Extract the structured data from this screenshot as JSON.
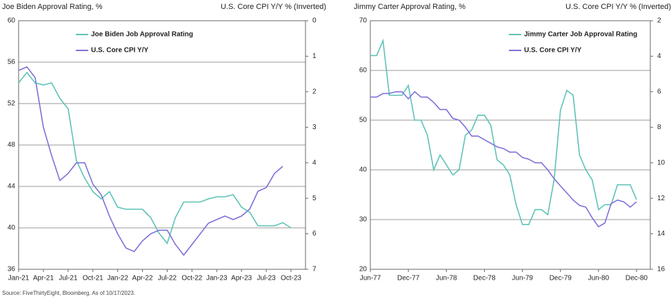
{
  "chart_data": [
    {
      "type": "line",
      "title": "Joe Biden Approval Rating, %",
      "y2_title": "U.S. Core CPI Y/Y % (Inverted)",
      "categories": [
        "Jan-21",
        null,
        null,
        "Apr-21",
        null,
        null,
        "Jul-21",
        null,
        null,
        "Oct-21",
        null,
        null,
        "Jan-22",
        null,
        null,
        "Apr-22",
        null,
        null,
        "Jul-22",
        null,
        null,
        "Oct-22",
        null,
        null,
        "Jan-23",
        null,
        null,
        "Apr-23",
        null,
        null,
        "Jul-23",
        null,
        null,
        "Oct-23"
      ],
      "series": [
        {
          "name": "Joe Biden Job Approval Rating",
          "color": "#5cc2b6",
          "values": [
            54,
            55,
            54,
            53.8,
            54,
            52.5,
            51.5,
            46.5,
            44.8,
            43.5,
            42.8,
            43.5,
            42,
            41.8,
            41.8,
            41.8,
            41,
            39.5,
            38.5,
            41,
            42.5,
            42.5,
            42.5,
            42.8,
            43,
            43,
            43.2,
            42,
            41.5,
            40.2,
            40.2,
            40.2,
            40.5,
            40
          ]
        },
        {
          "name": "U.S. Core CPI Y/Y",
          "color": "#7c70d8",
          "axis": "y2",
          "values": [
            1.4,
            1.3,
            1.6,
            3.0,
            3.8,
            4.5,
            4.3,
            4.0,
            4.0,
            4.6,
            4.9,
            5.5,
            6.0,
            6.4,
            6.5,
            6.2,
            6.0,
            5.9,
            5.9,
            6.3,
            6.6,
            6.3,
            6.0,
            5.7,
            5.6,
            5.5,
            5.6,
            5.5,
            5.3,
            4.8,
            4.7,
            4.3,
            4.1,
            null
          ]
        }
      ],
      "ylim": [
        36,
        60
      ],
      "yticks": [
        36,
        40,
        44,
        48,
        52,
        56,
        60
      ],
      "y2lim": [
        7,
        0
      ],
      "y2ticks": [
        0,
        1,
        2,
        3,
        4,
        5,
        6,
        7
      ],
      "grid": true,
      "legend": "upper center"
    },
    {
      "type": "line",
      "title": "Jimmy Carter Approval Rating, %",
      "y2_title": "U.S. Core CPI Y/Y % (Inverted)",
      "categories": [
        "Jun-77",
        null,
        null,
        null,
        null,
        null,
        "Dec-77",
        null,
        null,
        null,
        null,
        null,
        "Jun-78",
        null,
        null,
        null,
        null,
        null,
        "Dec-78",
        null,
        null,
        null,
        null,
        null,
        "Jun-79",
        null,
        null,
        null,
        null,
        null,
        "Dec-79",
        null,
        null,
        null,
        null,
        null,
        "Jun-80",
        null,
        null,
        null,
        null,
        null,
        "Dec-80"
      ],
      "series": [
        {
          "name": "Jimmy Carter Job Approval Rating",
          "color": "#5cc2b6",
          "values": [
            63,
            63,
            66,
            55,
            55,
            55,
            57,
            50,
            50,
            47,
            40,
            43,
            41,
            39,
            40,
            47,
            48,
            51,
            51,
            49,
            42,
            41,
            39,
            33,
            29,
            29,
            32,
            32,
            31,
            38,
            52,
            56,
            55,
            43,
            40,
            38,
            32,
            33,
            33,
            37,
            37,
            37,
            34
          ]
        },
        {
          "name": "U.S. Core CPI Y/Y",
          "color": "#7c70d8",
          "axis": "y2",
          "values": [
            6.3,
            6.3,
            6.1,
            6.1,
            6.0,
            6.0,
            6.4,
            6.0,
            6.3,
            6.3,
            6.6,
            7.0,
            7.0,
            7.5,
            7.6,
            8.0,
            8.5,
            8.5,
            8.7,
            8.9,
            9.1,
            9.2,
            9.4,
            9.4,
            9.7,
            9.8,
            10.0,
            10.0,
            10.4,
            10.9,
            11.3,
            11.7,
            12.1,
            12.4,
            12.5,
            13.1,
            13.6,
            13.4,
            12.3,
            12.1,
            12.2,
            12.5,
            12.2
          ]
        }
      ],
      "ylim": [
        20,
        70
      ],
      "yticks": [
        20,
        30,
        40,
        50,
        60,
        70
      ],
      "y2lim": [
        16,
        2
      ],
      "y2ticks": [
        2,
        4,
        6,
        8,
        10,
        12,
        14,
        16
      ],
      "grid": true,
      "legend": "upper right"
    }
  ],
  "source": "Source: FiveThirtyEight, Bloomberg. As of 10/17/2023."
}
